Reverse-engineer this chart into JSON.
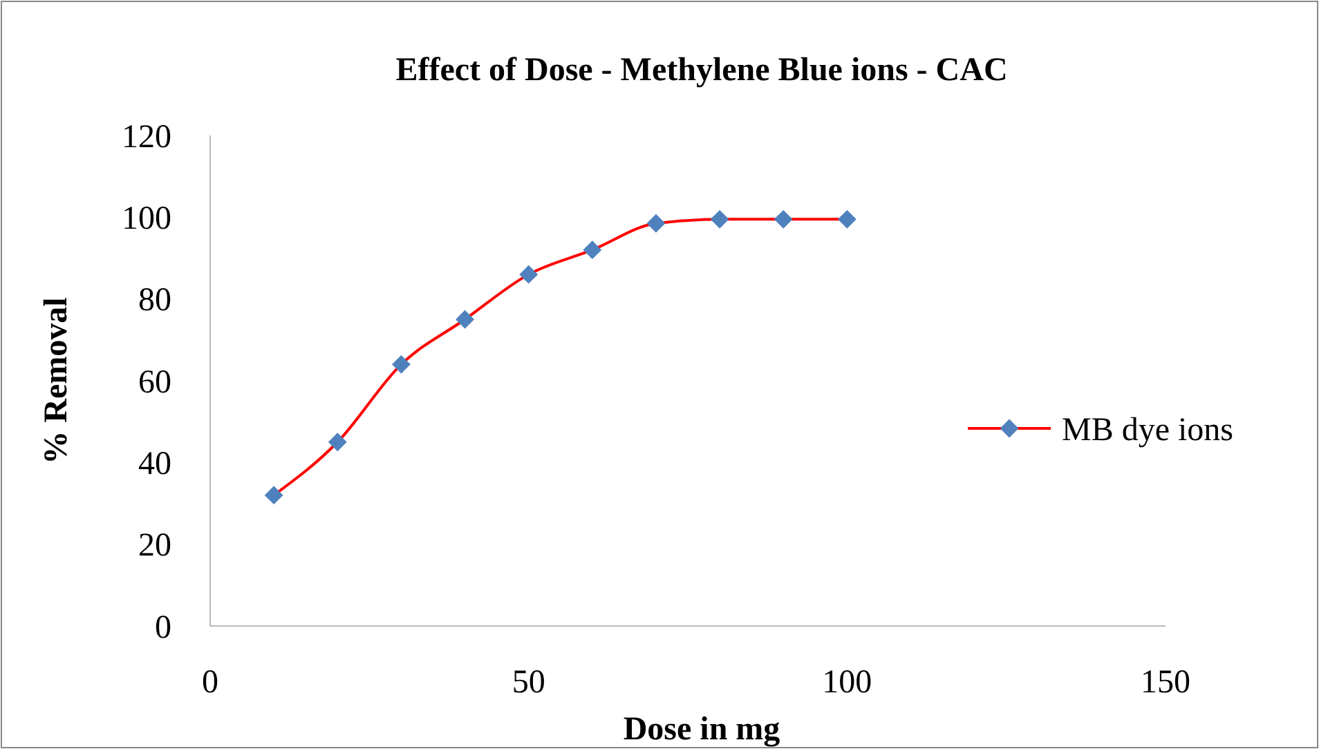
{
  "chart_data": {
    "type": "line",
    "title": "Effect of Dose - Methylene Blue ions - CAC",
    "xlabel": "Dose in mg",
    "ylabel": "% Removal",
    "x": [
      10,
      20,
      30,
      40,
      50,
      60,
      70,
      80,
      90,
      100
    ],
    "series": [
      {
        "name": "MB dye ions",
        "color": "#ff0000",
        "values": [
          32,
          45,
          64,
          75,
          86,
          92,
          98.5,
          99.5,
          99.5,
          99.5
        ]
      }
    ],
    "xlim": [
      0,
      150
    ],
    "xticks": [
      0,
      50,
      100,
      150
    ],
    "ylim": [
      0,
      120
    ],
    "yticks": [
      0,
      20,
      40,
      60,
      80,
      100,
      120
    ],
    "grid": false,
    "legend": "right",
    "marker": "diamond",
    "line_style": "solid"
  }
}
